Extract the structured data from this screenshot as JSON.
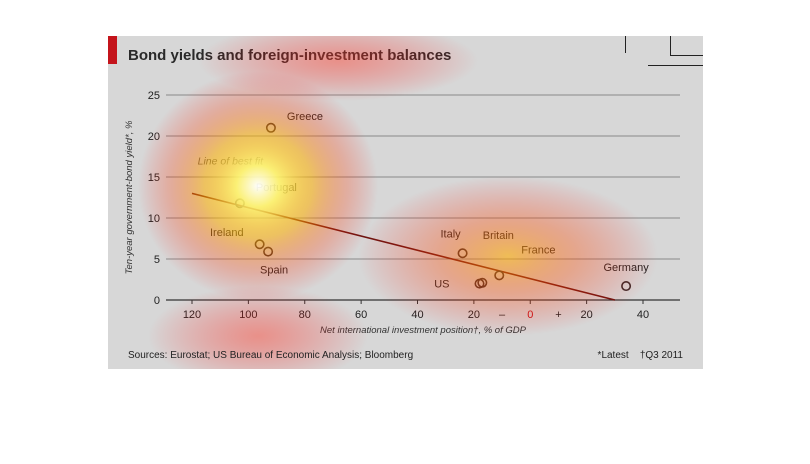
{
  "header": {
    "title": "Bond yields and foreign-investment balances"
  },
  "footer": {
    "sources": "Sources: Eurostat; US Bureau of Economic Analysis; Bloomberg",
    "note_latest": "*Latest",
    "note_q3": "†Q3 2011"
  },
  "colors": {
    "accent": "#c4141b",
    "line": "#6b1410",
    "zero_label": "#c4141b",
    "background": "#d7d7d7"
  },
  "chart_data": {
    "type": "scatter",
    "title": "Bond yields and foreign-investment balances",
    "xlabel": "Net international investment position†, % of GDP",
    "ylabel": "Ten-year government-bond yield*, %",
    "xlim": [
      -130,
      50
    ],
    "ylim": [
      0,
      25
    ],
    "x_reversed_negative": true,
    "x_ticks": [
      -120,
      -100,
      -80,
      -60,
      -40,
      -20,
      0,
      20,
      40
    ],
    "x_tick_labels": [
      "120",
      "100",
      "80",
      "60",
      "40",
      "20",
      "0",
      "20",
      "40"
    ],
    "x_sign_minus": "–",
    "x_sign_plus": "+",
    "y_ticks": [
      0,
      5,
      10,
      15,
      20,
      25
    ],
    "grid": true,
    "points": [
      {
        "name": "Greece",
        "x": -92,
        "y": 21.0
      },
      {
        "name": "Portugal",
        "x": -103,
        "y": 11.8
      },
      {
        "name": "Ireland",
        "x": -96,
        "y": 6.8
      },
      {
        "name": "Spain",
        "x": -93,
        "y": 5.9
      },
      {
        "name": "Italy",
        "x": -24,
        "y": 5.7
      },
      {
        "name": "Britain",
        "x": -17,
        "y": 2.1
      },
      {
        "name": "US",
        "x": -18,
        "y": 2.0
      },
      {
        "name": "France",
        "x": -11,
        "y": 3.0
      },
      {
        "name": "Germany",
        "x": 34,
        "y": 1.7
      }
    ],
    "fit_line": {
      "label": "Line of best fit",
      "x": [
        -120,
        30
      ],
      "y": [
        13.0,
        0
      ]
    }
  }
}
